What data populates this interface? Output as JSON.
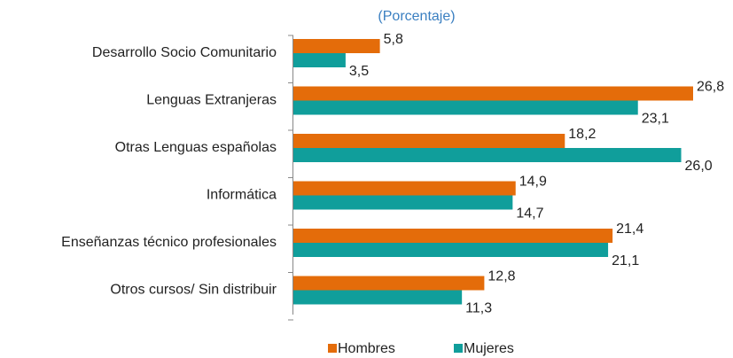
{
  "chart_data": {
    "type": "bar",
    "orientation": "horizontal",
    "subtitle": "(Porcentaje)",
    "categories": [
      "Desarrollo Socio Comunitario",
      "Lenguas Extranjeras",
      "Otras Lenguas españolas",
      "Informática",
      "Enseñanzas técnico profesionales",
      "Otros cursos/ Sin distribuir"
    ],
    "series": [
      {
        "name": "Hombres",
        "color": "#e46c0a",
        "values": [
          5.8,
          26.8,
          18.2,
          14.9,
          21.4,
          12.8
        ],
        "value_labels": [
          "5,8",
          "26,8",
          "18,2",
          "14,9",
          "21,4",
          "12,8"
        ]
      },
      {
        "name": "Mujeres",
        "color": "#109e9b",
        "values": [
          3.5,
          23.1,
          26.0,
          14.7,
          21.1,
          11.3
        ],
        "value_labels": [
          "3,5",
          "23,1",
          "26,0",
          "14,7",
          "21,1",
          "11,3"
        ]
      }
    ],
    "legend": "bottom"
  }
}
